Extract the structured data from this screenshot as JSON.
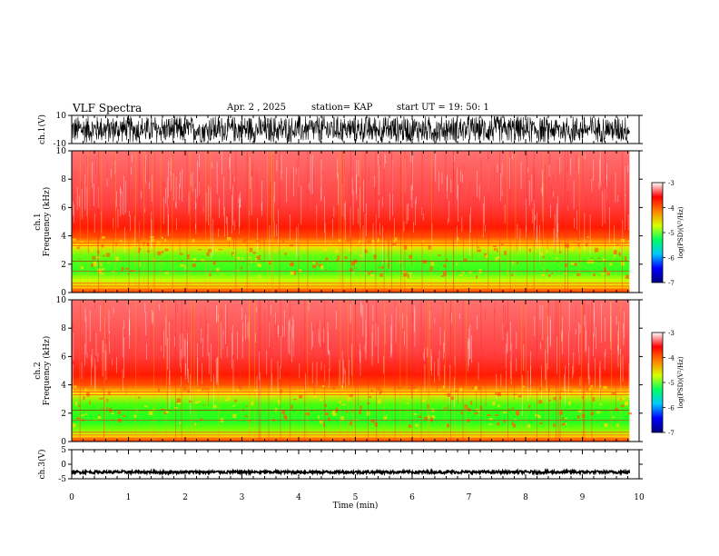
{
  "header": {
    "title": "VLF Spectra",
    "date": "Apr. 2 , 2025",
    "station": "station= KAP",
    "start": "start UT = 19: 50: 1"
  },
  "chart_data": [
    {
      "type": "line",
      "name": "ch1-waveform",
      "ylabel": "ch.1(V)",
      "ylim": [
        -10,
        10
      ],
      "yticks": [
        10,
        -10
      ],
      "xlim": [
        0,
        10
      ],
      "x_end_data": 9.83
    },
    {
      "type": "heatmap",
      "name": "ch1-spectrogram",
      "ylabel": "ch.1\nFrequency (kHz)",
      "ylim": [
        0,
        10
      ],
      "yticks": [
        0,
        2,
        4,
        6,
        8,
        10
      ],
      "xlim": [
        0,
        10
      ],
      "x_end_data": 9.83
    },
    {
      "type": "heatmap",
      "name": "ch2-spectrogram",
      "ylabel": "ch.2\nFrequency (kHz)",
      "ylim": [
        0,
        10
      ],
      "yticks": [
        0,
        2,
        4,
        6,
        8,
        10
      ],
      "xlim": [
        0,
        10
      ],
      "x_end_data": 9.83
    },
    {
      "type": "line",
      "name": "ch3-waveform",
      "ylabel": "ch.3(V)",
      "ylim": [
        -5,
        5
      ],
      "yticks": [
        5,
        0,
        -5
      ],
      "xlim": [
        0,
        10
      ],
      "xticks": [
        0,
        1,
        2,
        3,
        4,
        5,
        6,
        7,
        8,
        9,
        10
      ],
      "xlabel": "Time (min)",
      "x_end_data": 9.83
    }
  ],
  "colorbar": {
    "label": "log(PSD)(V²/Hz)",
    "range": [
      -7,
      -3
    ],
    "ticks": [
      "-3",
      "-4",
      "-5",
      "-6",
      "-7"
    ],
    "colors": [
      "#000080",
      "#0000ff",
      "#00c8ff",
      "#00ff60",
      "#d8ff00",
      "#ff8000",
      "#ff0000",
      "#ffffff"
    ]
  }
}
